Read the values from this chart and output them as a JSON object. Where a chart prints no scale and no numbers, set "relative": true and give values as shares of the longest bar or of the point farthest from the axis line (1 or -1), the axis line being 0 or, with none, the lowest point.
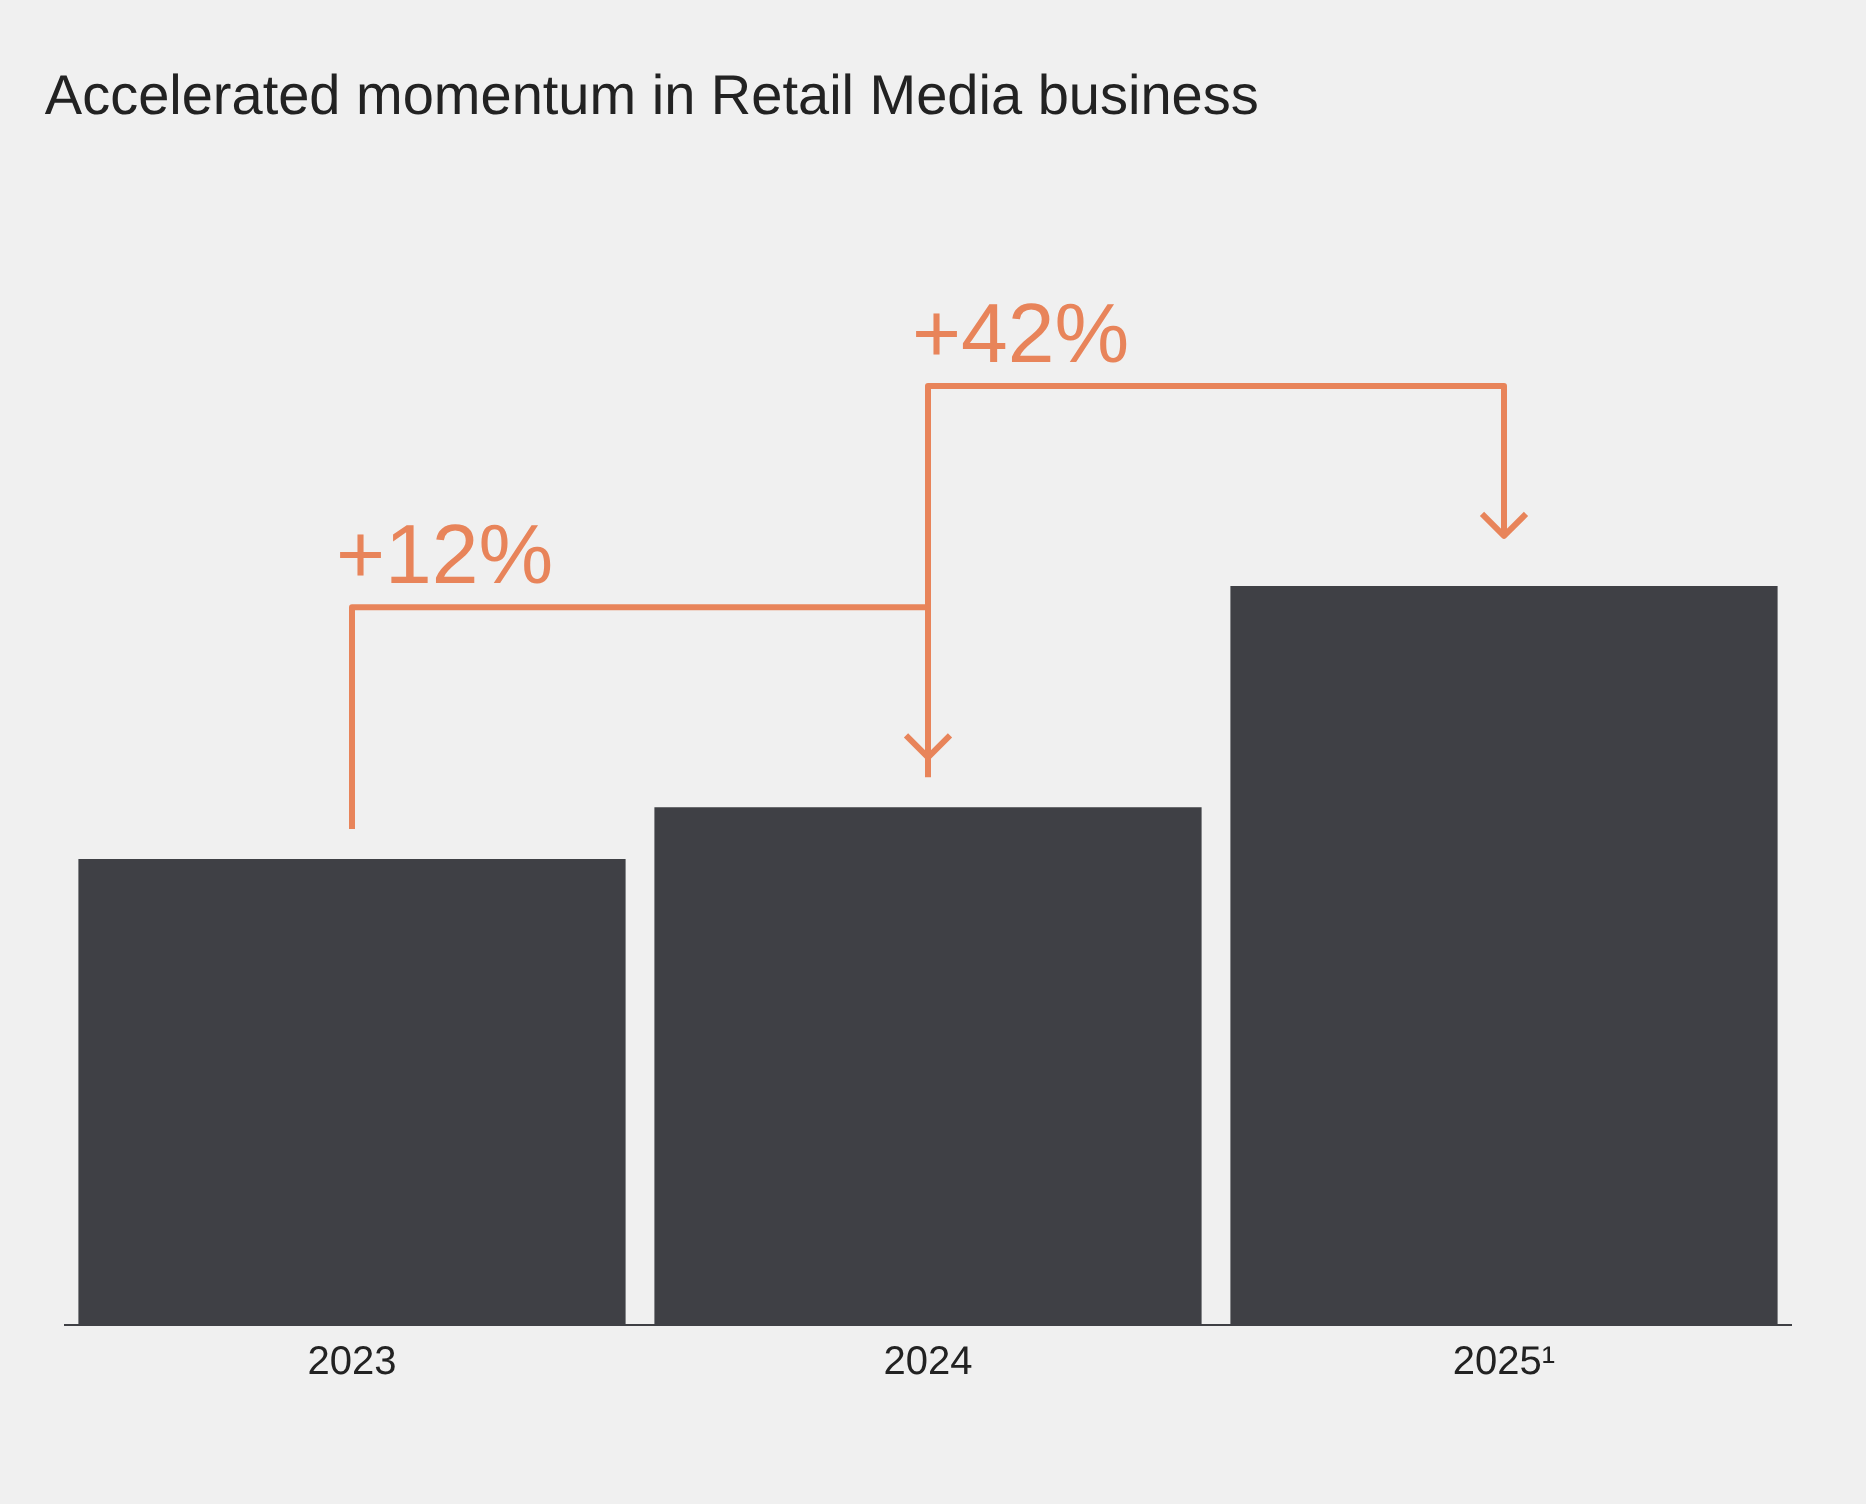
{
  "chart_data": {
    "type": "bar",
    "title": "Accelerated momentum in Retail Media business",
    "categories": [
      "2023",
      "2024",
      "2025¹"
    ],
    "values": [
      0.63,
      0.7,
      1
    ],
    "color": "#3f4045",
    "relative": true,
    "annotations": [
      "+12%",
      "+42%"
    ]
  }
}
